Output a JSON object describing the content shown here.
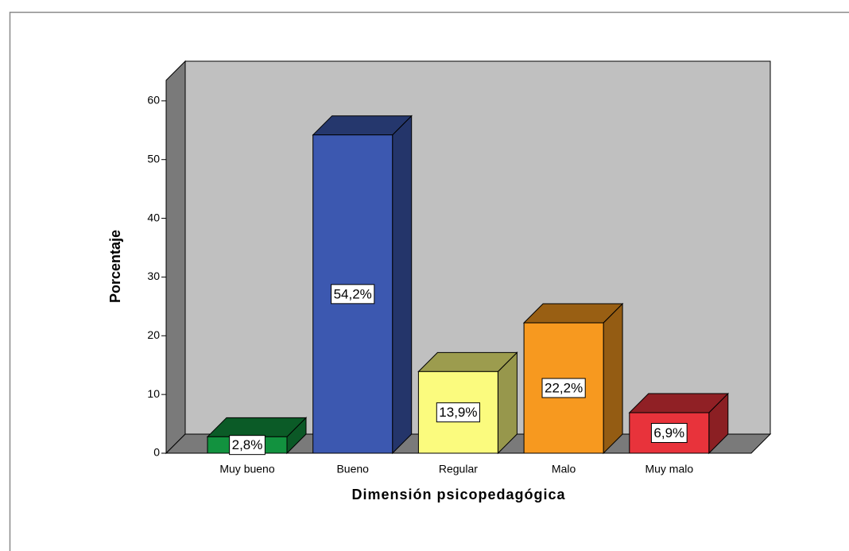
{
  "chart_data": {
    "type": "bar3d",
    "categories": [
      "Muy bueno",
      "Bueno",
      "Regular",
      "Malo",
      "Muy malo"
    ],
    "values": [
      2.8,
      54.2,
      13.9,
      22.2,
      6.9
    ],
    "value_labels": [
      "2,8%",
      "54,2%",
      "13,9%",
      "22,2%",
      "6,9%"
    ],
    "colors": [
      "#12923f",
      "#3c58b0",
      "#fbfb7e",
      "#f7991f",
      "#e8333b"
    ],
    "xlabel": "Dimensión psicopedagógica",
    "ylabel": "Porcentaje",
    "ylim": [
      0,
      63.5
    ],
    "yticks": [
      0,
      10,
      20,
      30,
      40,
      50,
      60
    ]
  }
}
